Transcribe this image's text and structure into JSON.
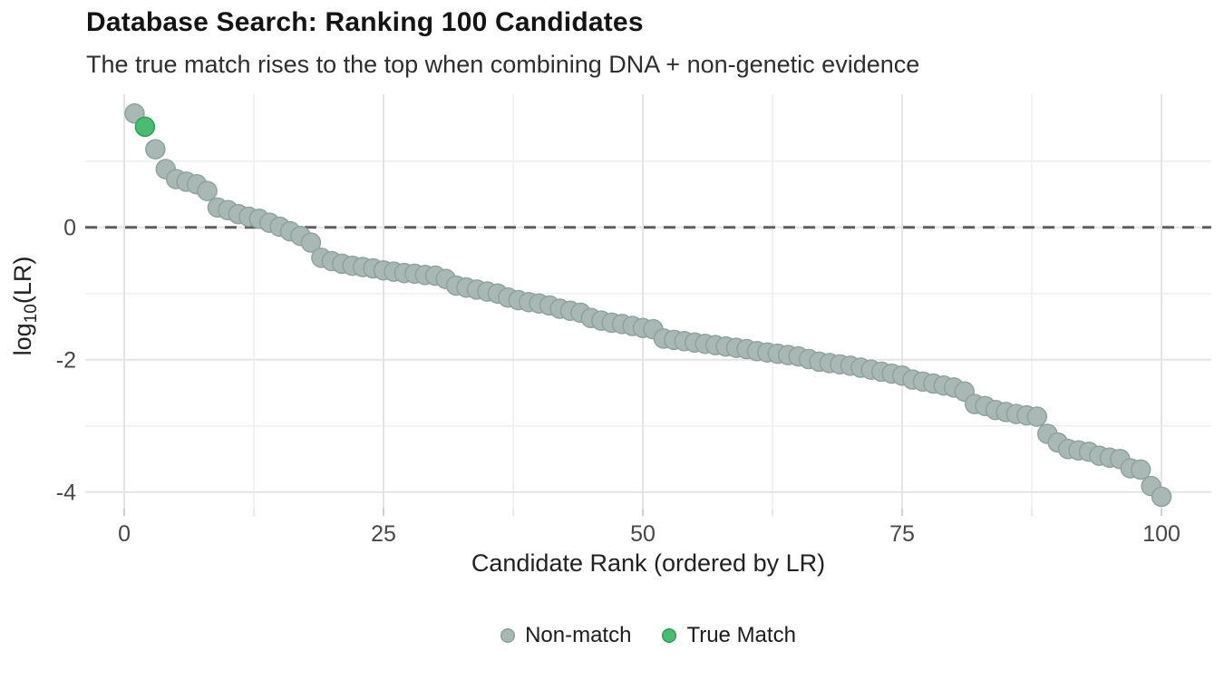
{
  "header": {
    "title": "Database Search: Ranking 100 Candidates",
    "subtitle": "The true match rises to the top when combining DNA + non-genetic evidence"
  },
  "chart_data": {
    "type": "scatter",
    "title": "Database Search: Ranking 100 Candidates",
    "subtitle": "The true match rises to the top when combining DNA + non-genetic evidence",
    "xlabel": "Candidate Rank (ordered by LR)",
    "ylabel_prefix": "log",
    "ylabel_sub": "10",
    "ylabel_suffix": "(LR)",
    "xlim": [
      -3.76,
      104.8
    ],
    "ylim": [
      -4.25,
      2.01
    ],
    "x_ticks": {
      "major": [
        0,
        25,
        50,
        75,
        100
      ],
      "minor": [
        12.5,
        37.5,
        62.5,
        87.5
      ]
    },
    "y_ticks": {
      "major": [
        0,
        -2,
        -4
      ],
      "minor": [
        1,
        -1,
        -3
      ]
    },
    "x_tick_labels": [
      "0",
      "25",
      "50",
      "75",
      "100"
    ],
    "y_tick_labels": [
      "0",
      "-2",
      "-4"
    ],
    "grid": "on",
    "legend_position": "bottom",
    "ref_line": {
      "y": 0,
      "color": "#5E5E5E",
      "style": "dashed"
    },
    "true_match_rank": 2,
    "series": [
      {
        "name": "Non-match",
        "fill": "#A9B8B4",
        "edge": "#8FA29E"
      },
      {
        "name": "True Match",
        "fill": "#4CBB71",
        "edge": "#2EA05A"
      }
    ],
    "ranks": [
      1,
      2,
      3,
      4,
      5,
      6,
      7,
      8,
      9,
      10,
      11,
      12,
      13,
      14,
      15,
      16,
      17,
      18,
      19,
      20,
      21,
      22,
      23,
      24,
      25,
      26,
      27,
      28,
      29,
      30,
      31,
      32,
      33,
      34,
      35,
      36,
      37,
      38,
      39,
      40,
      41,
      42,
      43,
      44,
      45,
      46,
      47,
      48,
      49,
      50,
      51,
      52,
      53,
      54,
      55,
      56,
      57,
      58,
      59,
      60,
      61,
      62,
      63,
      64,
      65,
      66,
      67,
      68,
      69,
      70,
      71,
      72,
      73,
      74,
      75,
      76,
      77,
      78,
      79,
      80,
      81,
      82,
      83,
      84,
      85,
      86,
      87,
      88,
      89,
      90,
      91,
      92,
      93,
      94,
      95,
      96,
      97,
      98,
      99,
      100
    ],
    "log10_lr_values": [
      1.72,
      1.52,
      1.18,
      0.88,
      0.73,
      0.69,
      0.65,
      0.55,
      0.3,
      0.26,
      0.2,
      0.16,
      0.13,
      0.07,
      0.01,
      -0.06,
      -0.13,
      -0.23,
      -0.46,
      -0.51,
      -0.55,
      -0.58,
      -0.6,
      -0.62,
      -0.65,
      -0.67,
      -0.69,
      -0.7,
      -0.72,
      -0.73,
      -0.78,
      -0.88,
      -0.91,
      -0.94,
      -0.97,
      -1.0,
      -1.06,
      -1.1,
      -1.13,
      -1.15,
      -1.18,
      -1.23,
      -1.26,
      -1.29,
      -1.37,
      -1.41,
      -1.44,
      -1.46,
      -1.49,
      -1.52,
      -1.54,
      -1.68,
      -1.7,
      -1.72,
      -1.74,
      -1.76,
      -1.78,
      -1.8,
      -1.82,
      -1.84,
      -1.87,
      -1.89,
      -1.91,
      -1.93,
      -1.95,
      -1.99,
      -2.03,
      -2.05,
      -2.07,
      -2.09,
      -2.12,
      -2.15,
      -2.18,
      -2.21,
      -2.24,
      -2.3,
      -2.33,
      -2.36,
      -2.39,
      -2.42,
      -2.48,
      -2.67,
      -2.7,
      -2.76,
      -2.79,
      -2.82,
      -2.84,
      -2.86,
      -3.12,
      -3.25,
      -3.35,
      -3.37,
      -3.39,
      -3.45,
      -3.48,
      -3.5,
      -3.64,
      -3.66,
      -3.91,
      -4.07
    ]
  }
}
